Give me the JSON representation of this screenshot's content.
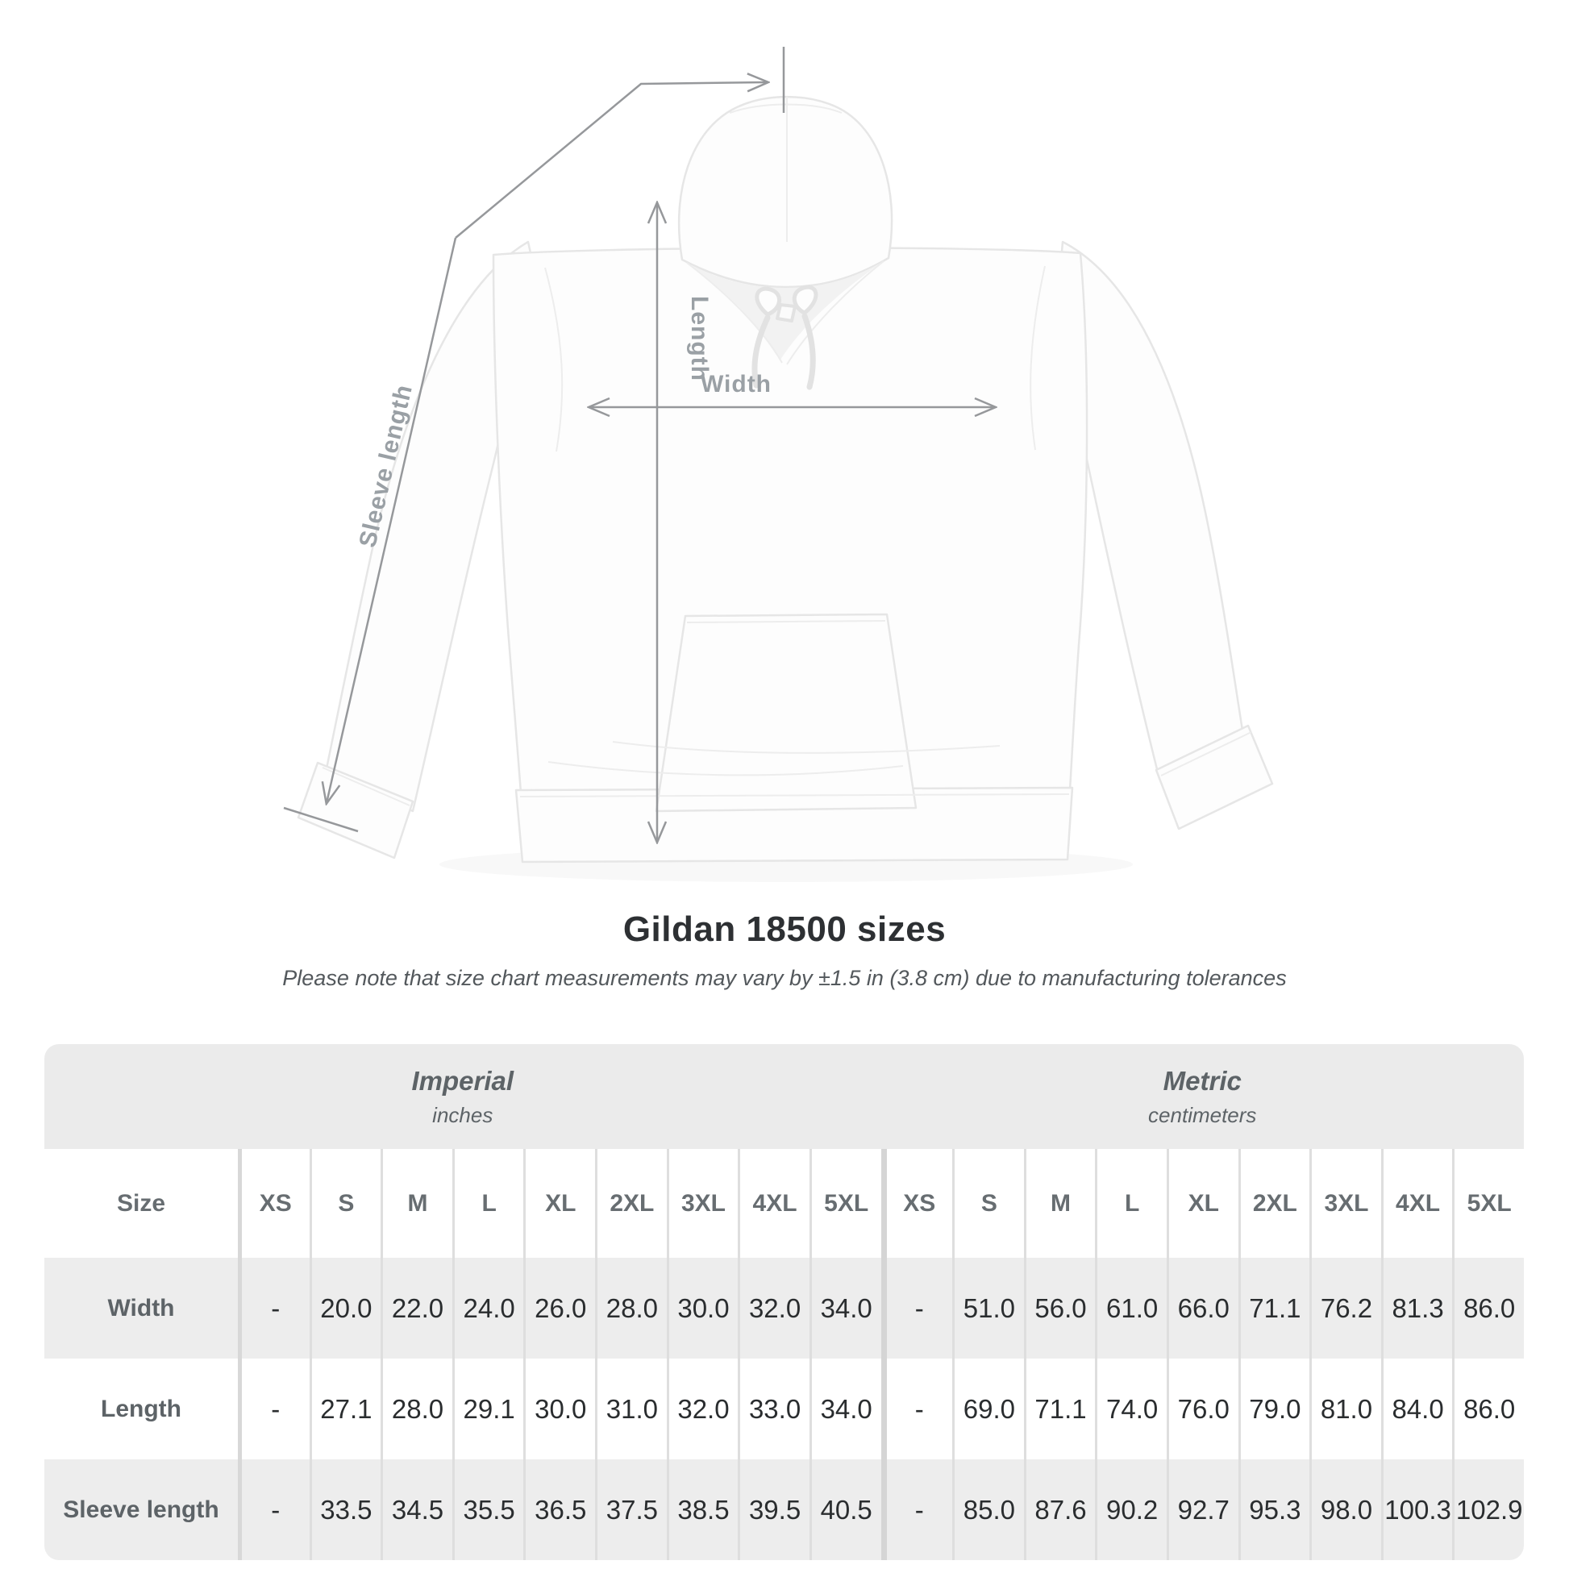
{
  "diagram": {
    "labels": {
      "sleeve": "Sleeve length",
      "length": "Length",
      "width": "Width"
    }
  },
  "title": "Gildan 18500 sizes",
  "subtitle": "Please note that size chart measurements may vary by ±1.5 in (3.8 cm) due to manufacturing tolerances",
  "table": {
    "size_label": "Size",
    "sections": [
      {
        "name": "Imperial",
        "unit": "inches",
        "sizes": [
          "XS",
          "S",
          "M",
          "L",
          "XL",
          "2XL",
          "3XL",
          "4XL",
          "5XL"
        ]
      },
      {
        "name": "Metric",
        "unit": "centimeters",
        "sizes": [
          "XS",
          "S",
          "M",
          "L",
          "XL",
          "2XL",
          "3XL",
          "4XL",
          "5XL"
        ]
      }
    ],
    "rows": [
      {
        "label": "Width",
        "imperial": [
          "-",
          "20.0",
          "22.0",
          "24.0",
          "26.0",
          "28.0",
          "30.0",
          "32.0",
          "34.0"
        ],
        "metric": [
          "-",
          "51.0",
          "56.0",
          "61.0",
          "66.0",
          "71.1",
          "76.2",
          "81.3",
          "86.0"
        ]
      },
      {
        "label": "Length",
        "imperial": [
          "-",
          "27.1",
          "28.0",
          "29.1",
          "30.0",
          "31.0",
          "32.0",
          "33.0",
          "34.0"
        ],
        "metric": [
          "-",
          "69.0",
          "71.1",
          "74.0",
          "76.0",
          "79.0",
          "81.0",
          "84.0",
          "86.0"
        ]
      },
      {
        "label": "Sleeve length",
        "imperial": [
          "-",
          "33.5",
          "34.5",
          "35.5",
          "36.5",
          "37.5",
          "38.5",
          "39.5",
          "40.5"
        ],
        "metric": [
          "-",
          "85.0",
          "87.6",
          "90.2",
          "92.7",
          "95.3",
          "98.0",
          "100.3",
          "102.9"
        ]
      }
    ]
  },
  "colors": {
    "band_gray": "#ebebeb",
    "row_gray": "#ededed",
    "annotation_gray": "#96989b",
    "label_gray": "#9aa0a5",
    "value_dark": "#2a2d2f"
  }
}
